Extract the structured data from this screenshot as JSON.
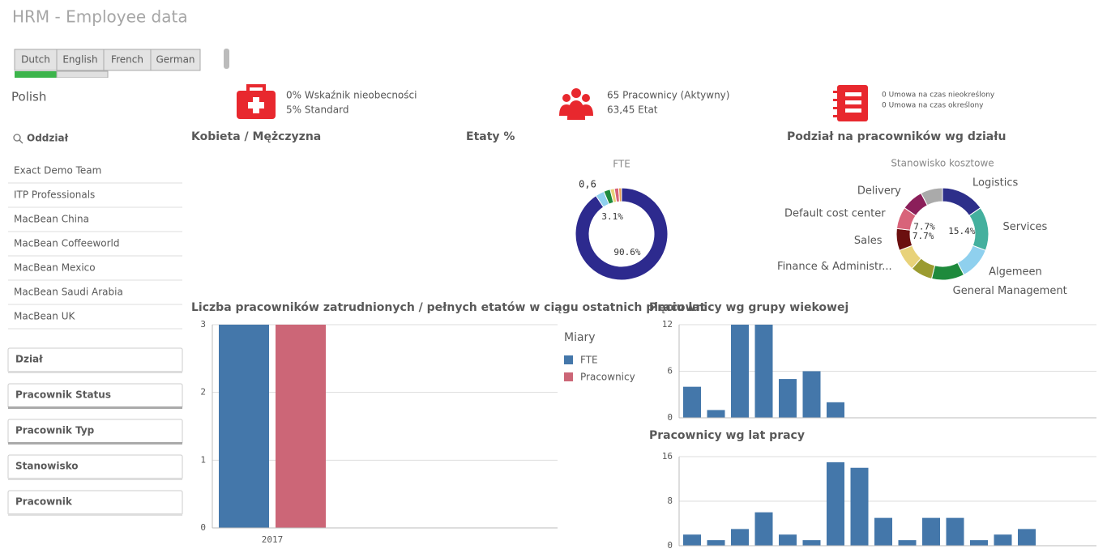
{
  "header": {
    "title": "HRM - Employee data"
  },
  "languages": [
    "Dutch",
    "English",
    "French",
    "German"
  ],
  "selected_language": "Polish",
  "kpis": [
    {
      "lines": [
        "0% Wskaźnik nieobecności",
        "5% Standard"
      ]
    },
    {
      "lines": [
        "65 Pracownicy (Aktywny)",
        "63,45 Etat"
      ]
    },
    {
      "lines": [
        "0 Umowa na czas nieokreślony",
        "0 Umowa na czas określony"
      ]
    }
  ],
  "filter": {
    "search_label": "Oddział",
    "items": [
      "Exact Demo Team",
      "ITP Professionals",
      "MacBean China",
      "MacBean Coffeeworld",
      "MacBean Mexico",
      "MacBean Saudi Arabia",
      "MacBean UK"
    ]
  },
  "dimensions": [
    "Dział",
    "Pracownik Status",
    "Pracownik Typ",
    "Stanowisko",
    "Pracownik"
  ],
  "chart_data": [
    {
      "type": "empty",
      "title": "Kobieta / Mężczyzna"
    },
    {
      "type": "donut",
      "title": "Etaty %",
      "subtitle": "FTE",
      "values": [
        90.6,
        3.1,
        2.3,
        1.5,
        1.5,
        1.0
      ],
      "value_labels": [
        "90.6%",
        "3.1%",
        null,
        null,
        null,
        null
      ],
      "colors": [
        "#2d2a8e",
        "#8fd0ee",
        "#1e8a3c",
        "#e8d27a",
        "#d8637a",
        "#e8a050"
      ],
      "annotations": [
        "0,6"
      ]
    },
    {
      "type": "donut",
      "title": "Podział na pracowników wg działu",
      "subtitle": "Stanowisko kosztowe",
      "categories": [
        "Logistics",
        "Services",
        "Algemeen",
        "General Management",
        null,
        "Finance & Administr...",
        "Sales",
        "Default cost center",
        "Delivery",
        null
      ],
      "values": [
        15.4,
        15.4,
        11.5,
        11.5,
        7.7,
        7.7,
        7.7,
        7.7,
        7.7,
        7.7
      ],
      "value_labels": [
        null,
        "15.4%",
        null,
        null,
        null,
        null,
        "7.7%",
        "7.7%",
        null,
        null
      ],
      "colors": [
        "#2d2f8a",
        "#44b09e",
        "#8fd0ee",
        "#1e8a3c",
        "#9b9b30",
        "#e8d27a",
        "#6b0f0f",
        "#d8637a",
        "#8b1f5a",
        "#aaaaaa"
      ]
    },
    {
      "type": "bar",
      "title": "Liczba pracowników zatrudnionych / pełnych etatów w ciągu ostatnich pięciu lat",
      "categories": [
        "2017"
      ],
      "series": [
        {
          "name": "FTE",
          "color": "#4477aa",
          "values": [
            3
          ]
        },
        {
          "name": "Pracownicy",
          "color": "#cc6677",
          "values": [
            3
          ]
        }
      ],
      "ylim": [
        0,
        3
      ],
      "yticks": [
        0,
        1,
        2,
        3
      ],
      "grid": true,
      "legend_title": "Miary",
      "legend": "right"
    },
    {
      "type": "bar",
      "title": "Pracownicy wg grupy wiekowej",
      "color": "#4477aa",
      "values": [
        4,
        1,
        12,
        12,
        5,
        6,
        2
      ],
      "ylim": [
        0,
        12
      ],
      "yticks": [
        0,
        6,
        12
      ],
      "grid": true
    },
    {
      "type": "bar",
      "title": "Pracownicy wg lat pracy",
      "color": "#4477aa",
      "values": [
        2,
        1,
        3,
        6,
        2,
        1,
        15,
        14,
        5,
        1,
        5,
        5,
        1,
        2,
        3
      ],
      "ylim": [
        0,
        16
      ],
      "yticks": [
        0,
        8,
        16
      ],
      "grid": true
    }
  ]
}
